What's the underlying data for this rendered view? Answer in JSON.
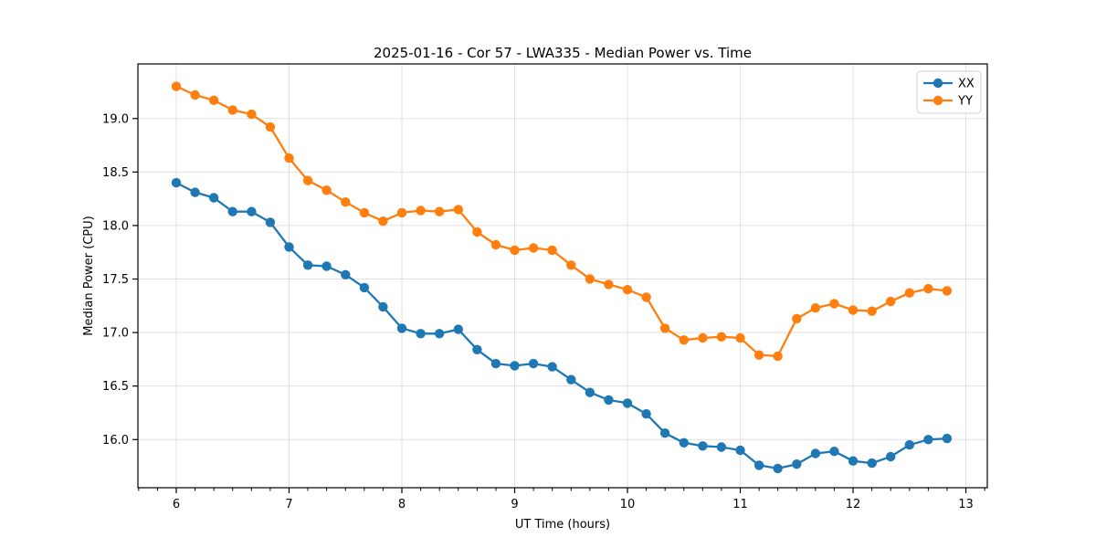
{
  "chart_data": {
    "type": "line",
    "title": "2025-01-16 - Cor 57 - LWA335 - Median Power vs. Time",
    "xlabel": "UT Time (hours)",
    "ylabel": "Median Power (CPU)",
    "x": [
      6.0,
      6.167,
      6.333,
      6.5,
      6.667,
      6.833,
      7.0,
      7.167,
      7.333,
      7.5,
      7.667,
      7.833,
      8.0,
      8.167,
      8.333,
      8.5,
      8.667,
      8.833,
      9.0,
      9.167,
      9.333,
      9.5,
      9.667,
      9.833,
      10.0,
      10.167,
      10.333,
      10.5,
      10.667,
      10.833,
      11.0,
      11.167,
      11.333,
      11.5,
      11.667,
      11.833,
      12.0,
      12.167,
      12.333,
      12.5,
      12.667,
      12.833
    ],
    "series": [
      {
        "name": "XX",
        "color": "#1f77b4",
        "marker": "circle",
        "values": [
          18.4,
          18.31,
          18.26,
          18.13,
          18.13,
          18.03,
          17.8,
          17.63,
          17.62,
          17.54,
          17.42,
          17.24,
          17.04,
          16.99,
          16.99,
          17.03,
          16.84,
          16.71,
          16.69,
          16.71,
          16.68,
          16.56,
          16.44,
          16.37,
          16.34,
          16.24,
          16.06,
          15.97,
          15.94,
          15.93,
          15.9,
          15.76,
          15.73,
          15.77,
          15.87,
          15.89,
          15.8,
          15.78,
          15.84,
          15.95,
          16.0,
          16.01
        ]
      },
      {
        "name": "YY",
        "color": "#ff7f0e",
        "marker": "circle",
        "values": [
          19.3,
          19.22,
          19.17,
          19.08,
          19.04,
          18.92,
          18.63,
          18.42,
          18.33,
          18.22,
          18.12,
          18.04,
          18.12,
          18.14,
          18.13,
          18.15,
          17.94,
          17.82,
          17.77,
          17.79,
          17.77,
          17.63,
          17.5,
          17.45,
          17.4,
          17.33,
          17.04,
          16.93,
          16.95,
          16.96,
          16.95,
          16.79,
          16.78,
          17.13,
          17.23,
          17.27,
          17.21,
          17.2,
          17.29,
          17.37,
          17.41,
          17.39
        ]
      }
    ],
    "xlim": [
      5.66,
      13.19
    ],
    "ylim": [
      15.55,
      19.51
    ],
    "xticks": [
      6,
      7,
      8,
      9,
      10,
      11,
      12,
      13
    ],
    "yticks": [
      16.0,
      16.5,
      17.0,
      17.5,
      18.0,
      18.5,
      19.0
    ],
    "x_minor_step": 0.16667,
    "grid": true,
    "grid_color": "#e0e0e0",
    "spine_color": "#000000",
    "legend_position": "upper right",
    "legend": [
      "XX",
      "YY"
    ]
  }
}
